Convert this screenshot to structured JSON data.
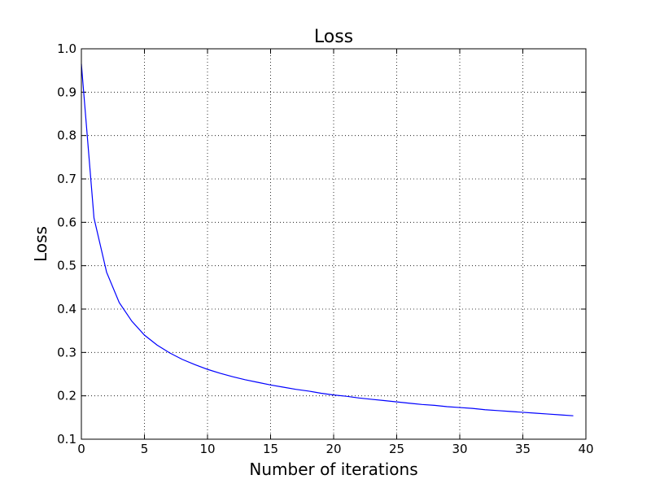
{
  "chart_data": {
    "type": "line",
    "title": "Loss",
    "xlabel": "Number of iterations",
    "ylabel": "Loss",
    "xlim": [
      0,
      40
    ],
    "ylim": [
      0.1,
      1.0
    ],
    "xticks": [
      0,
      5,
      10,
      15,
      20,
      25,
      30,
      35,
      40
    ],
    "yticks": [
      0.1,
      0.2,
      0.3,
      0.4,
      0.5,
      0.6,
      0.7,
      0.8,
      0.9,
      1.0
    ],
    "xtick_labels": [
      "0",
      "5",
      "10",
      "15",
      "20",
      "25",
      "30",
      "35",
      "40"
    ],
    "ytick_labels": [
      "0.1",
      "0.2",
      "0.3",
      "0.4",
      "0.5",
      "0.6",
      "0.7",
      "0.8",
      "0.9",
      "1.0"
    ],
    "grid": true,
    "series": [
      {
        "color": "#0000ff",
        "x": [
          0,
          1,
          2,
          3,
          4,
          5,
          6,
          7,
          8,
          9,
          10,
          11,
          12,
          13,
          14,
          15,
          16,
          17,
          18,
          19,
          20,
          21,
          22,
          23,
          24,
          25,
          26,
          27,
          28,
          29,
          30,
          31,
          32,
          33,
          34,
          35,
          36,
          37,
          38,
          39
        ],
        "values": [
          0.965,
          0.61,
          0.485,
          0.415,
          0.372,
          0.34,
          0.317,
          0.299,
          0.284,
          0.272,
          0.261,
          0.252,
          0.244,
          0.237,
          0.231,
          0.225,
          0.22,
          0.215,
          0.211,
          0.206,
          0.202,
          0.199,
          0.195,
          0.192,
          0.189,
          0.186,
          0.183,
          0.18,
          0.178,
          0.175,
          0.173,
          0.171,
          0.168,
          0.166,
          0.164,
          0.162,
          0.16,
          0.158,
          0.156,
          0.154
        ]
      }
    ]
  }
}
